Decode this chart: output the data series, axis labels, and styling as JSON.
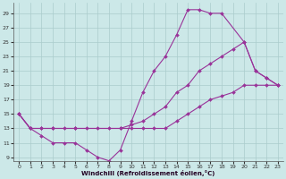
{
  "xlabel": "Windchill (Refroidissement éolien,°C)",
  "bg_color": "#cce8e8",
  "grid_color": "#aacccc",
  "line_color": "#993399",
  "xlim": [
    -0.5,
    23.5
  ],
  "ylim": [
    8.5,
    30.5
  ],
  "xticks": [
    0,
    1,
    2,
    3,
    4,
    5,
    6,
    7,
    8,
    9,
    10,
    11,
    12,
    13,
    14,
    15,
    16,
    17,
    18,
    19,
    20,
    21,
    22,
    23
  ],
  "yticks": [
    9,
    11,
    13,
    15,
    17,
    19,
    21,
    23,
    25,
    27,
    29
  ],
  "curves": [
    {
      "x": [
        0,
        1,
        2,
        3,
        4,
        5,
        6,
        7,
        8,
        9,
        10,
        11,
        12,
        13,
        14,
        15,
        16,
        17,
        18,
        20,
        21,
        22,
        23
      ],
      "y": [
        15,
        13,
        12,
        11,
        11,
        11,
        10,
        9,
        8.5,
        10,
        14,
        18,
        21,
        23,
        26,
        29.5,
        29.5,
        29,
        29,
        25,
        21,
        20,
        19
      ]
    },
    {
      "x": [
        0,
        1,
        2,
        3,
        5,
        9,
        10,
        11,
        12,
        13,
        14,
        15,
        16,
        17,
        18,
        19,
        20,
        21,
        22,
        23
      ],
      "y": [
        15,
        13,
        13,
        13,
        13,
        13,
        13.5,
        14,
        15,
        16,
        18,
        19,
        21,
        22,
        23,
        24,
        25,
        21,
        20,
        19
      ]
    },
    {
      "x": [
        0,
        1,
        2,
        3,
        4,
        5,
        6,
        7,
        8,
        9,
        10,
        11,
        12,
        13,
        14,
        15,
        16,
        17,
        18,
        19,
        20,
        21,
        22,
        23
      ],
      "y": [
        15,
        13,
        13,
        13,
        13,
        13,
        13,
        13,
        13,
        13,
        13,
        13,
        13,
        13,
        14,
        15,
        16,
        17,
        17.5,
        18,
        19,
        19,
        19,
        19
      ]
    }
  ]
}
